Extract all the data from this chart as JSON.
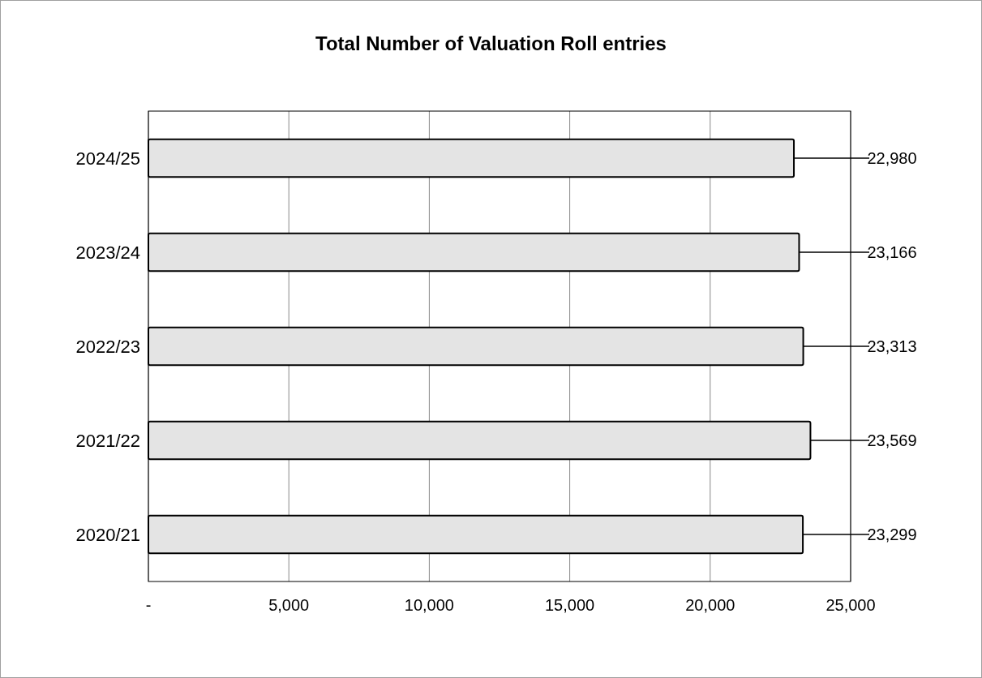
{
  "chart_data": {
    "type": "bar",
    "orientation": "horizontal",
    "title": "Total Number of Valuation Roll entries",
    "categories": [
      "2024/25",
      "2023/24",
      "2022/23",
      "2021/22",
      "2020/21"
    ],
    "values": [
      22980,
      23166,
      23313,
      23569,
      23299
    ],
    "value_labels": [
      "22,980",
      "23,166",
      "23,313",
      "23,569",
      "23,299"
    ],
    "color": "#e4e4e4",
    "xlim": [
      0,
      25000
    ],
    "xticks": [
      {
        "value": 0,
        "label": "-"
      },
      {
        "value": 5000,
        "label": "5,000"
      },
      {
        "value": 10000,
        "label": "10,000"
      },
      {
        "value": 15000,
        "label": "15,000"
      },
      {
        "value": 20000,
        "label": "20,000"
      },
      {
        "value": 25000,
        "label": "25,000"
      }
    ],
    "grid": "x"
  }
}
